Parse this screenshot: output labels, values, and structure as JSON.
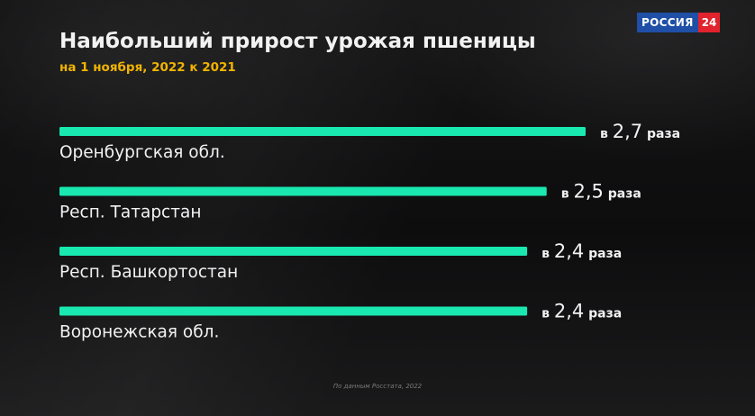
{
  "channel": {
    "name": "РОССИЯ",
    "number": "24"
  },
  "colors": {
    "bar": "#19e8b0",
    "title": "#f2f2f2",
    "subtitle": "#f0b400",
    "label": "#f2f2f2"
  },
  "chart_data": {
    "type": "bar",
    "orientation": "horizontal",
    "title": "Наибольший прирост урожая пшеницы",
    "subtitle": "на 1 ноября, 2022 к 2021",
    "categories": [
      "Оренбургская обл.",
      "Респ. Татарстан",
      "Респ. Башкортостан",
      "Воронежская обл."
    ],
    "values": [
      2.7,
      2.5,
      2.4,
      2.4
    ],
    "value_labels": [
      {
        "prefix": "в",
        "number": "2,7",
        "unit": "раза"
      },
      {
        "prefix": "в",
        "number": "2,5",
        "unit": "раза"
      },
      {
        "prefix": "в",
        "number": "2,4",
        "unit": "раза"
      },
      {
        "prefix": "в",
        "number": "2,4",
        "unit": "раза"
      }
    ],
    "xlim": [
      0,
      2.7
    ],
    "grid": false,
    "legend": "none"
  },
  "source": "По данным Росстата, 2022"
}
